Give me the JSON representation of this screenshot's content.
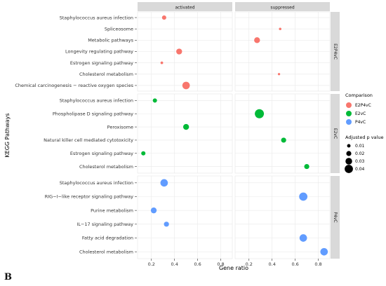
{
  "chart_data": {
    "type": "scatter",
    "figure_label": "B",
    "xlabel": "Gene ratio",
    "ylabel": "KEGG Pathways",
    "xlim": [
      0.08,
      0.9
    ],
    "xticks": [
      0.2,
      0.4,
      0.6,
      0.8
    ],
    "xtick_labels": [
      "0.2",
      "0.4",
      "0.6",
      "0.8"
    ],
    "grid": true,
    "columns": [
      "activated",
      "suppressed"
    ],
    "legend": {
      "position": "right",
      "color_title": "Comparison",
      "color_entries": [
        {
          "label": "E2P4vC",
          "color": "#F8766D"
        },
        {
          "label": "E2vC",
          "color": "#00BA38"
        },
        {
          "label": "P4vC",
          "color": "#619CFF"
        }
      ],
      "size_title": "Adjusted p value",
      "size_entries": [
        {
          "label": "0.01",
          "value": 0.01
        },
        {
          "label": "0.02",
          "value": 0.02
        },
        {
          "label": "0.03",
          "value": 0.03
        },
        {
          "label": "0.04",
          "value": 0.04
        }
      ]
    },
    "rows": [
      {
        "label": "E2P4vC",
        "color": "#F8766D",
        "pathways": [
          "Staphylococcus aureus infection",
          "Spliceosome",
          "Metabolic pathways",
          "Longevity regulating pathway",
          "Estrogen signaling pathway",
          "Cholesterol metabolism",
          "Chemical carcinogenesis − reactive oxygen species"
        ],
        "points": [
          {
            "pathway": "Staphylococcus aureus infection",
            "column": "activated",
            "gene_ratio": 0.31,
            "p_adj": 0.015
          },
          {
            "pathway": "Spliceosome",
            "column": "suppressed",
            "gene_ratio": 0.47,
            "p_adj": 0.004
          },
          {
            "pathway": "Metabolic pathways",
            "column": "suppressed",
            "gene_ratio": 0.27,
            "p_adj": 0.025
          },
          {
            "pathway": "Longevity regulating pathway",
            "column": "activated",
            "gene_ratio": 0.44,
            "p_adj": 0.025
          },
          {
            "pathway": "Estrogen signaling pathway",
            "column": "activated",
            "gene_ratio": 0.29,
            "p_adj": 0.005
          },
          {
            "pathway": "Cholesterol metabolism",
            "column": "suppressed",
            "gene_ratio": 0.46,
            "p_adj": 0.003
          },
          {
            "pathway": "Chemical carcinogenesis − reactive oxygen species",
            "column": "activated",
            "gene_ratio": 0.5,
            "p_adj": 0.035
          }
        ]
      },
      {
        "label": "E2vC",
        "color": "#00BA38",
        "pathways": [
          "Staphylococcus aureus infection",
          "Phospholipase D signaling pathway",
          "Peroxisome",
          "Natural killer cell mediated cytotoxicity",
          "Estrogen signaling pathway",
          "Cholesterol metabolism"
        ],
        "points": [
          {
            "pathway": "Staphylococcus aureus infection",
            "column": "activated",
            "gene_ratio": 0.23,
            "p_adj": 0.015
          },
          {
            "pathway": "Phospholipase D signaling pathway",
            "column": "suppressed",
            "gene_ratio": 0.29,
            "p_adj": 0.045
          },
          {
            "pathway": "Peroxisome",
            "column": "activated",
            "gene_ratio": 0.5,
            "p_adj": 0.025
          },
          {
            "pathway": "Natural killer cell mediated cytotoxicity",
            "column": "suppressed",
            "gene_ratio": 0.5,
            "p_adj": 0.02
          },
          {
            "pathway": "Estrogen signaling pathway",
            "column": "activated",
            "gene_ratio": 0.13,
            "p_adj": 0.015
          },
          {
            "pathway": "Cholesterol metabolism",
            "column": "suppressed",
            "gene_ratio": 0.7,
            "p_adj": 0.02
          }
        ]
      },
      {
        "label": "P4vC",
        "color": "#619CFF",
        "pathways": [
          "Staphylococcus aureus infection",
          "RIG−I−like receptor signaling pathway",
          "Purine metabolism",
          "IL−17 signaling pathway",
          "Fatty acid degradation",
          "Cholesterol metabolism"
        ],
        "points": [
          {
            "pathway": "Staphylococcus aureus infection",
            "column": "activated",
            "gene_ratio": 0.31,
            "p_adj": 0.035
          },
          {
            "pathway": "RIG−I−like receptor signaling pathway",
            "column": "suppressed",
            "gene_ratio": 0.67,
            "p_adj": 0.04
          },
          {
            "pathway": "Purine metabolism",
            "column": "activated",
            "gene_ratio": 0.22,
            "p_adj": 0.025
          },
          {
            "pathway": "IL−17 signaling pathway",
            "column": "activated",
            "gene_ratio": 0.33,
            "p_adj": 0.02
          },
          {
            "pathway": "Fatty acid degradation",
            "column": "suppressed",
            "gene_ratio": 0.67,
            "p_adj": 0.035
          },
          {
            "pathway": "Cholesterol metabolism",
            "column": "suppressed",
            "gene_ratio": 0.85,
            "p_adj": 0.035
          }
        ]
      }
    ]
  }
}
